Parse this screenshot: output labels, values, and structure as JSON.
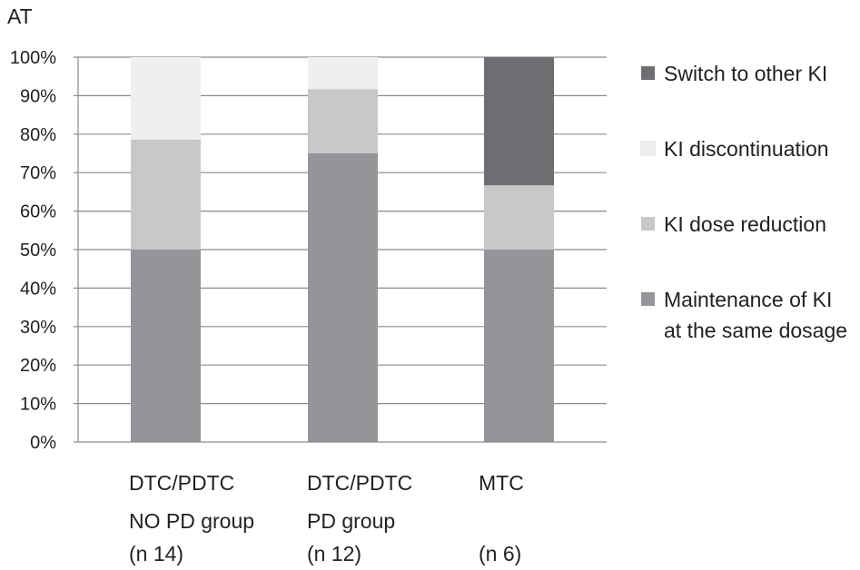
{
  "chart_data": {
    "type": "bar",
    "stacked": true,
    "percent": true,
    "title": "AT",
    "xlabel": "",
    "ylabel": "",
    "ylim": [
      0,
      100
    ],
    "yticks": [
      "0%",
      "10%",
      "20%",
      "30%",
      "40%",
      "50%",
      "60%",
      "70%",
      "80%",
      "90%",
      "100%"
    ],
    "grid": true,
    "legend_position": "right",
    "categories": [
      [
        "DTC/PDTC",
        "NO PD group",
        "(n 14)"
      ],
      [
        "DTC/PDTC",
        "PD group",
        "(n 12)"
      ],
      [
        "MTC",
        "",
        "(n 6)"
      ]
    ],
    "series": [
      {
        "name": [
          "Maintenance of KI",
          "at the same dosage"
        ],
        "color": "#939598",
        "values": [
          50,
          75,
          50
        ]
      },
      {
        "name": [
          "KI dose reduction"
        ],
        "color": "#c7c8ca",
        "values": [
          28.6,
          16.7,
          16.7
        ]
      },
      {
        "name": [
          "KI discontinuation"
        ],
        "color": "#efefef",
        "values": [
          21.4,
          8.3,
          0
        ]
      },
      {
        "name": [
          "Switch to other KI"
        ],
        "color": "#6d6e71",
        "values": [
          0,
          0,
          33.3
        ]
      }
    ],
    "legend_order": [
      3,
      2,
      1,
      0
    ]
  }
}
